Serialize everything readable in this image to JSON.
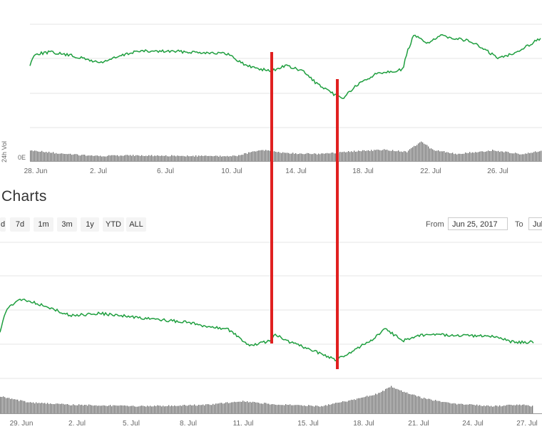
{
  "top_chart": {
    "y_axis_label": "24h Vol",
    "zero_label": "0E",
    "x_ticks": [
      "28. Jun",
      "2. Jul",
      "6. Jul",
      "10. Jul",
      "14. Jul",
      "18. Jul",
      "22. Jul",
      "26. Jul"
    ]
  },
  "section_title": "Charts",
  "range_buttons": [
    "d",
    "7d",
    "1m",
    "3m",
    "1y",
    "YTD",
    "ALL"
  ],
  "date_range": {
    "from_label": "From",
    "from_value": "Jun 25, 2017",
    "to_label": "To",
    "to_value": "Jul"
  },
  "bottom_chart": {
    "x_ticks": [
      "29. Jun",
      "2. Jul",
      "5. Jul",
      "8. Jul",
      "11. Jul",
      "15. Jul",
      "18. Jul",
      "21. Jul",
      "24. Jul",
      "27. Jul"
    ]
  },
  "colors": {
    "price_line": "#1e9e3e",
    "volume_bars": "#707070",
    "annotation": "#e02020",
    "grid": "#e6e6e6"
  }
}
